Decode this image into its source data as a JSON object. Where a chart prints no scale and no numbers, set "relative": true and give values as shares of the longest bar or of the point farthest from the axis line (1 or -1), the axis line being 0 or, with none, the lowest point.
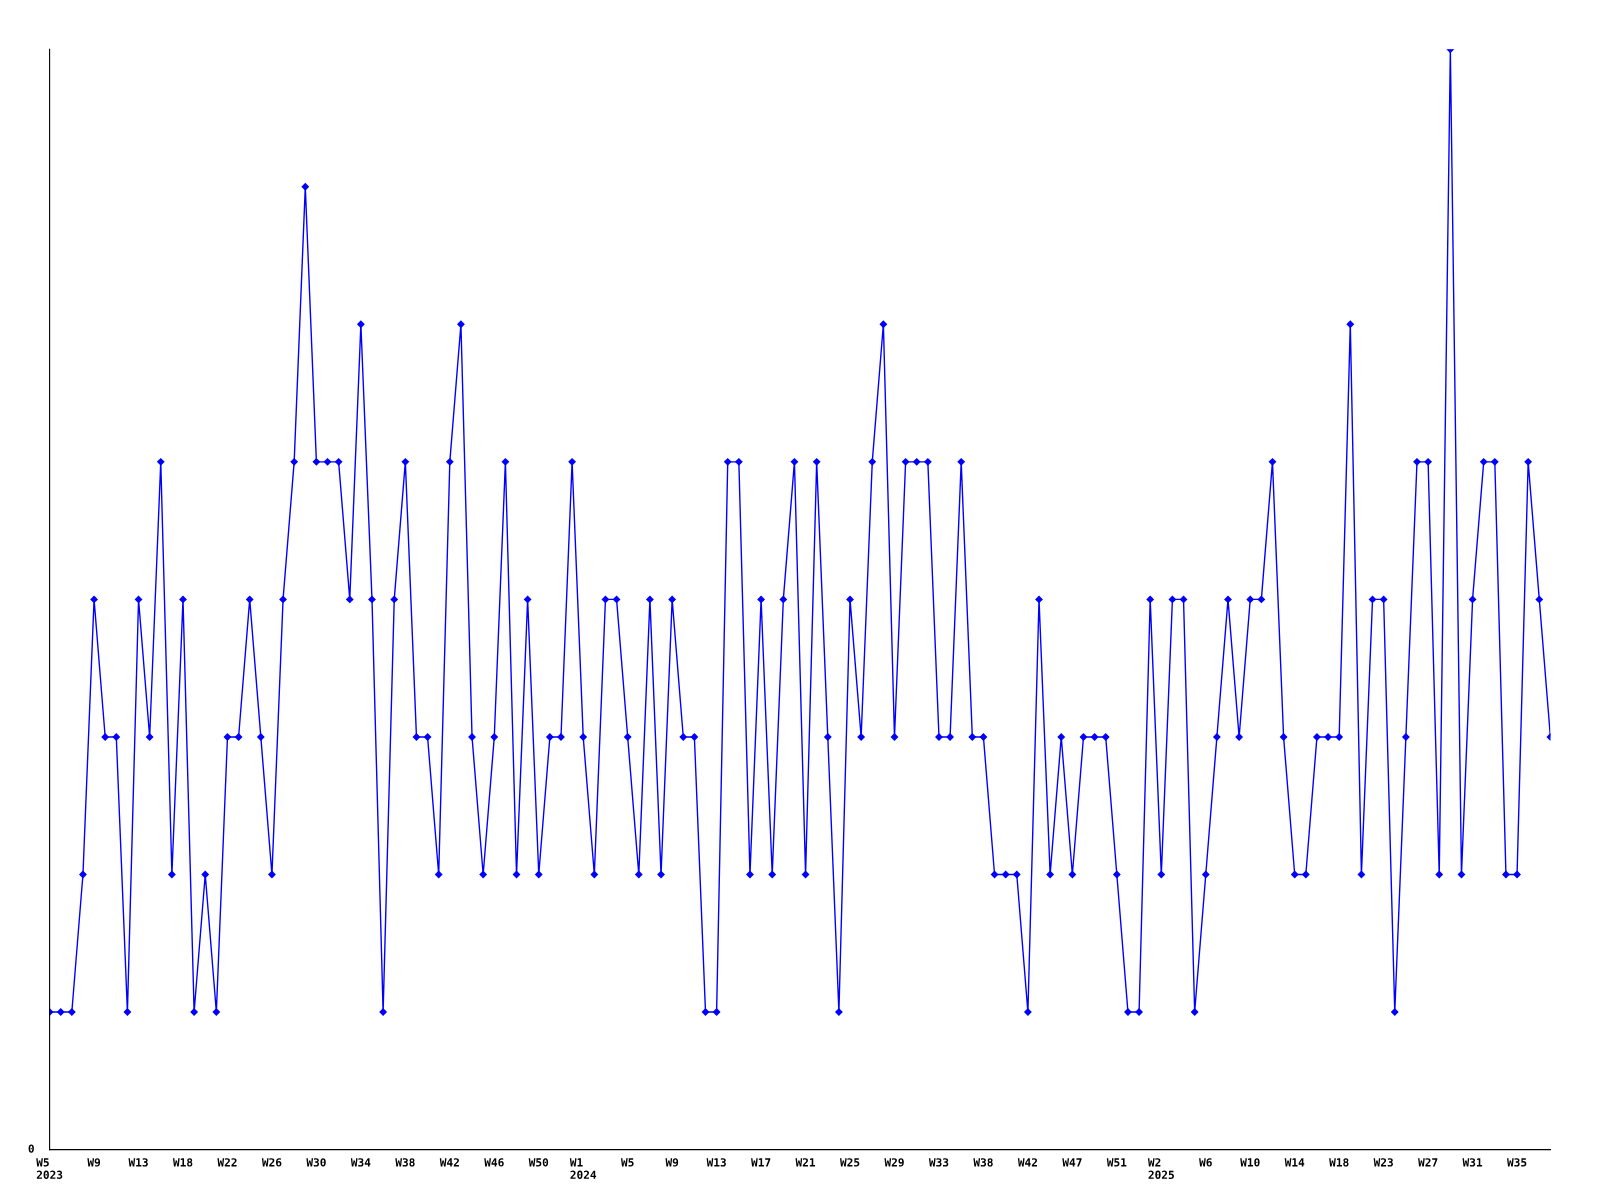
{
  "chart_data": {
    "type": "line",
    "relative": true,
    "marker": "diamond",
    "grid": false,
    "legend": false,
    "annotations": [
      "0"
    ],
    "categories": [
      "W5\n2023",
      null,
      null,
      null,
      "W9",
      null,
      null,
      null,
      "W13",
      null,
      null,
      null,
      "W18",
      null,
      null,
      null,
      "W22",
      null,
      null,
      null,
      "W26",
      null,
      null,
      null,
      "W30",
      null,
      null,
      null,
      "W34",
      null,
      null,
      null,
      "W38",
      null,
      null,
      null,
      "W42",
      null,
      null,
      null,
      "W46",
      null,
      null,
      null,
      "W50",
      null,
      null,
      null,
      "W1\n2024",
      null,
      null,
      null,
      "W5",
      null,
      null,
      null,
      "W9",
      null,
      null,
      null,
      "W13",
      null,
      null,
      null,
      "W17",
      null,
      null,
      null,
      "W21",
      null,
      null,
      null,
      "W25",
      null,
      null,
      null,
      "W29",
      null,
      null,
      null,
      "W33",
      null,
      null,
      null,
      "W38",
      null,
      null,
      null,
      "W42",
      null,
      null,
      null,
      "W47",
      null,
      null,
      null,
      "W51",
      null,
      null,
      null,
      "W2\n2025",
      null,
      null,
      null,
      "W6",
      null,
      null,
      null,
      "W10",
      null,
      null,
      null,
      "W14",
      null,
      null,
      null,
      "W18",
      null,
      null,
      null,
      "W23",
      null,
      null,
      null,
      "W27",
      null,
      null,
      null,
      "W31",
      null,
      null,
      null,
      "W35",
      null,
      null,
      null
    ],
    "series": [
      {
        "color": "#0000ff",
        "values": [
          0.125,
          0.125,
          0.125,
          0.25,
          0.5,
          0.375,
          0.375,
          0.125,
          0.5,
          0.375,
          0.625,
          0.25,
          0.5,
          0.125,
          0.25,
          0.125,
          0.375,
          0.375,
          0.5,
          0.375,
          0.25,
          0.5,
          0.625,
          0.875,
          0.625,
          0.625,
          0.625,
          0.5,
          0.75,
          0.5,
          0.125,
          0.5,
          0.625,
          0.375,
          0.375,
          0.25,
          0.625,
          0.75,
          0.375,
          0.25,
          0.375,
          0.625,
          0.25,
          0.5,
          0.25,
          0.375,
          0.375,
          0.625,
          0.375,
          0.25,
          0.5,
          0.5,
          0.375,
          0.25,
          0.5,
          0.25,
          0.5,
          0.375,
          0.375,
          0.125,
          0.125,
          0.625,
          0.625,
          0.25,
          0.5,
          0.25,
          0.5,
          0.625,
          0.25,
          0.625,
          0.375,
          0.125,
          0.5,
          0.375,
          0.625,
          0.75,
          0.375,
          0.625,
          0.625,
          0.625,
          0.375,
          0.375,
          0.625,
          0.375,
          0.375,
          0.25,
          0.25,
          0.25,
          0.125,
          0.5,
          0.25,
          0.375,
          0.25,
          0.375,
          0.375,
          0.375,
          0.25,
          0.125,
          0.125,
          0.5,
          0.25,
          0.5,
          0.5,
          0.125,
          0.25,
          0.375,
          0.5,
          0.375,
          0.5,
          0.5,
          0.625,
          0.375,
          0.25,
          0.25,
          0.375,
          0.375,
          0.375,
          0.75,
          0.25,
          0.5,
          0.5,
          0.125,
          0.375,
          0.625,
          0.625,
          0.25,
          1,
          0.25,
          0.5,
          0.625,
          0.625,
          0.25,
          0.25,
          0.625,
          0.5,
          0.375
        ]
      }
    ]
  }
}
